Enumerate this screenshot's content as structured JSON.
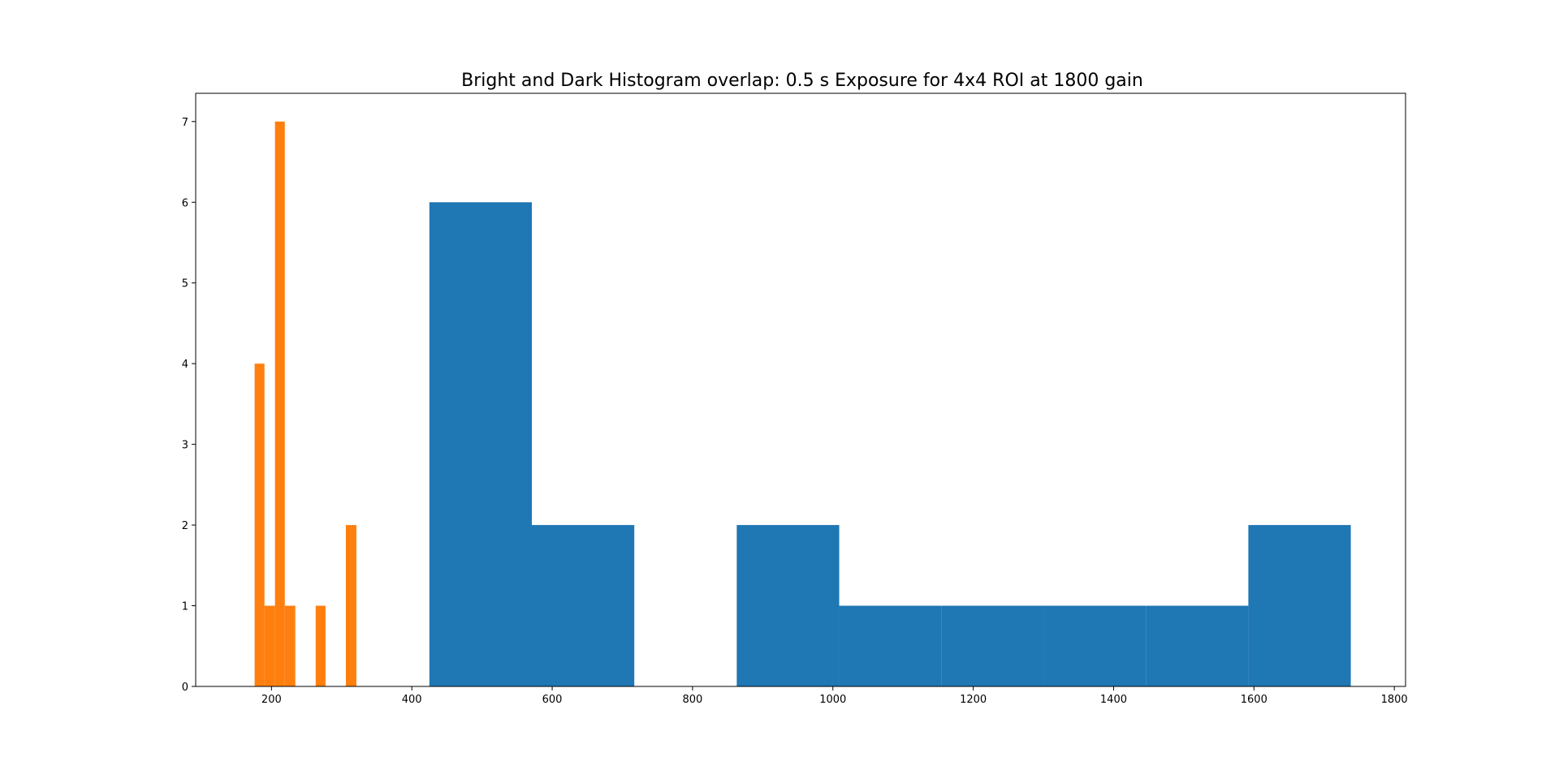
{
  "chart_data": {
    "type": "bar",
    "title": "Bright and Dark Histogram overlap: 0.5 s Exposure for 4x4 ROI at 1800 gain",
    "xlabel": "",
    "ylabel": "",
    "xlim": [
      92,
      1816
    ],
    "ylim": [
      0,
      7.35
    ],
    "xticks": [
      200,
      400,
      600,
      800,
      1000,
      1200,
      1400,
      1600,
      1800
    ],
    "yticks": [
      0,
      1,
      2,
      3,
      4,
      5,
      6,
      7
    ],
    "grid": false,
    "legend": "none",
    "series": [
      {
        "color": "#1f77b4",
        "bins": [
          {
            "x0": 425,
            "x1": 571,
            "count": 6
          },
          {
            "x0": 571,
            "x1": 717,
            "count": 2
          },
          {
            "x0": 717,
            "x1": 863,
            "count": 0
          },
          {
            "x0": 863,
            "x1": 1009,
            "count": 2
          },
          {
            "x0": 1009,
            "x1": 1155,
            "count": 1
          },
          {
            "x0": 1155,
            "x1": 1300,
            "count": 1
          },
          {
            "x0": 1300,
            "x1": 1446,
            "count": 1
          },
          {
            "x0": 1446,
            "x1": 1592,
            "count": 1
          },
          {
            "x0": 1592,
            "x1": 1738,
            "count": 2
          }
        ]
      },
      {
        "color": "#ff7f0e",
        "bins": [
          {
            "x0": 176,
            "x1": 190,
            "count": 4
          },
          {
            "x0": 190,
            "x1": 205,
            "count": 1
          },
          {
            "x0": 205,
            "x1": 219,
            "count": 7
          },
          {
            "x0": 219,
            "x1": 234,
            "count": 1
          },
          {
            "x0": 234,
            "x1": 248,
            "count": 0
          },
          {
            "x0": 248,
            "x1": 263,
            "count": 0
          },
          {
            "x0": 263,
            "x1": 277,
            "count": 1
          },
          {
            "x0": 277,
            "x1": 292,
            "count": 0
          },
          {
            "x0": 292,
            "x1": 306,
            "count": 0
          },
          {
            "x0": 306,
            "x1": 321,
            "count": 2
          }
        ]
      }
    ]
  }
}
